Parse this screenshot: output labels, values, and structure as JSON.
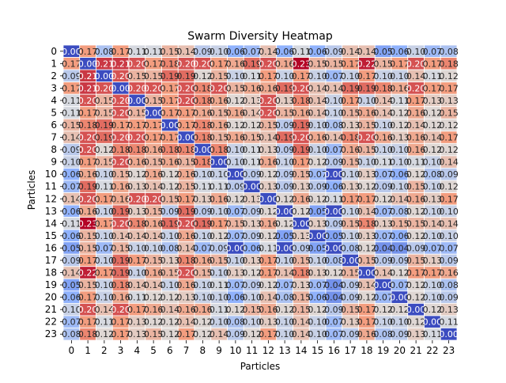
{
  "chart_data": {
    "type": "heatmap",
    "title": "Swarm Diversity Heatmap",
    "xlabel": "Particles",
    "ylabel": "Particles",
    "x_categories": [
      "0",
      "1",
      "2",
      "3",
      "4",
      "5",
      "6",
      "7",
      "8",
      "9",
      "10",
      "11",
      "12",
      "13",
      "14",
      "15",
      "16",
      "17",
      "18",
      "19",
      "20",
      "21",
      "22",
      "23"
    ],
    "y_categories": [
      "0",
      "1",
      "2",
      "3",
      "4",
      "5",
      "6",
      "7",
      "8",
      "9",
      "10",
      "11",
      "12",
      "13",
      "14",
      "15",
      "16",
      "17",
      "18",
      "19",
      "20",
      "21",
      "22",
      "23"
    ],
    "colormap": "coolwarm",
    "value_range": [
      0.0,
      0.23
    ],
    "grid": "white cell borders",
    "legend": "none",
    "values": [
      [
        0.0,
        0.17,
        0.08,
        0.17,
        0.11,
        0.11,
        0.15,
        0.14,
        0.09,
        0.1,
        0.06,
        0.07,
        0.14,
        0.06,
        0.11,
        0.06,
        0.09,
        0.14,
        0.14,
        0.05,
        0.06,
        0.1,
        0.07,
        0.08
      ],
      [
        0.17,
        0.0,
        0.21,
        0.21,
        0.2,
        0.17,
        0.18,
        0.2,
        0.2,
        0.17,
        0.16,
        0.19,
        0.2,
        0.16,
        0.23,
        0.15,
        0.15,
        0.17,
        0.22,
        0.15,
        0.17,
        0.2,
        0.17,
        0.18
      ],
      [
        0.09,
        0.21,
        0.0,
        0.2,
        0.15,
        0.15,
        0.19,
        0.19,
        0.12,
        0.15,
        0.1,
        0.11,
        0.17,
        0.1,
        0.17,
        0.1,
        0.07,
        0.1,
        0.17,
        0.1,
        0.1,
        0.14,
        0.11,
        0.12
      ],
      [
        0.17,
        0.21,
        0.2,
        0.0,
        0.2,
        0.2,
        0.17,
        0.2,
        0.18,
        0.2,
        0.15,
        0.16,
        0.16,
        0.19,
        0.2,
        0.14,
        0.14,
        0.19,
        0.19,
        0.18,
        0.16,
        0.2,
        0.17,
        0.17
      ],
      [
        0.11,
        0.2,
        0.15,
        0.2,
        0.0,
        0.15,
        0.17,
        0.2,
        0.18,
        0.16,
        0.12,
        0.13,
        0.2,
        0.13,
        0.18,
        0.14,
        0.1,
        0.17,
        0.1,
        0.14,
        0.11,
        0.17,
        0.13,
        0.13
      ],
      [
        0.11,
        0.17,
        0.15,
        0.2,
        0.15,
        0.0,
        0.17,
        0.17,
        0.16,
        0.15,
        0.16,
        0.14,
        0.2,
        0.15,
        0.16,
        0.14,
        0.1,
        0.15,
        0.16,
        0.14,
        0.12,
        0.16,
        0.12,
        0.15
      ],
      [
        0.15,
        0.18,
        0.19,
        0.17,
        0.17,
        0.17,
        0.0,
        0.17,
        0.18,
        0.16,
        0.12,
        0.12,
        0.15,
        0.09,
        0.19,
        0.1,
        0.08,
        0.13,
        0.15,
        0.1,
        0.12,
        0.14,
        0.12,
        0.12
      ],
      [
        0.14,
        0.2,
        0.19,
        0.2,
        0.2,
        0.17,
        0.17,
        0.0,
        0.18,
        0.15,
        0.16,
        0.15,
        0.14,
        0.19,
        0.2,
        0.16,
        0.14,
        0.18,
        0.2,
        0.16,
        0.13,
        0.16,
        0.14,
        0.17
      ],
      [
        0.09,
        0.2,
        0.12,
        0.18,
        0.18,
        0.16,
        0.18,
        0.18,
        0.0,
        0.18,
        0.1,
        0.11,
        0.13,
        0.09,
        0.19,
        0.1,
        0.07,
        0.16,
        0.15,
        0.1,
        0.1,
        0.16,
        0.12,
        0.12
      ],
      [
        0.1,
        0.17,
        0.15,
        0.2,
        0.16,
        0.15,
        0.16,
        0.15,
        0.18,
        0.0,
        0.1,
        0.11,
        0.16,
        0.1,
        0.17,
        0.12,
        0.09,
        0.15,
        0.1,
        0.11,
        0.1,
        0.11,
        0.1,
        0.14
      ],
      [
        0.06,
        0.16,
        0.1,
        0.15,
        0.12,
        0.16,
        0.12,
        0.16,
        0.1,
        0.1,
        0.0,
        0.09,
        0.12,
        0.09,
        0.15,
        0.07,
        0.0,
        0.1,
        0.13,
        0.07,
        0.06,
        0.12,
        0.08,
        0.09
      ],
      [
        0.07,
        0.19,
        0.11,
        0.16,
        0.13,
        0.14,
        0.12,
        0.15,
        0.11,
        0.11,
        0.09,
        0.0,
        0.13,
        0.09,
        0.13,
        0.09,
        0.06,
        0.13,
        0.12,
        0.09,
        0.1,
        0.15,
        0.1,
        0.12
      ],
      [
        0.14,
        0.2,
        0.17,
        0.16,
        0.2,
        0.2,
        0.15,
        0.17,
        0.13,
        0.16,
        0.12,
        0.13,
        0.0,
        0.12,
        0.16,
        0.12,
        0.11,
        0.17,
        0.17,
        0.12,
        0.14,
        0.16,
        0.13,
        0.17
      ],
      [
        0.06,
        0.16,
        0.1,
        0.19,
        0.13,
        0.15,
        0.09,
        0.19,
        0.09,
        0.1,
        0.07,
        0.09,
        0.12,
        0.0,
        0.12,
        0.05,
        0.0,
        0.1,
        0.14,
        0.07,
        0.08,
        0.12,
        0.1,
        0.1
      ],
      [
        0.11,
        0.23,
        0.17,
        0.2,
        0.18,
        0.16,
        0.19,
        0.2,
        0.19,
        0.17,
        0.15,
        0.13,
        0.16,
        0.12,
        0.0,
        0.13,
        0.09,
        0.15,
        0.18,
        0.13,
        0.15,
        0.15,
        0.14,
        0.14
      ],
      [
        0.06,
        0.15,
        0.1,
        0.14,
        0.14,
        0.14,
        0.1,
        0.16,
        0.1,
        0.12,
        0.07,
        0.09,
        0.12,
        0.05,
        0.13,
        0.0,
        0.05,
        0.1,
        0.13,
        0.07,
        0.06,
        0.12,
        0.1,
        0.1
      ],
      [
        0.05,
        0.15,
        0.07,
        0.15,
        0.1,
        0.1,
        0.08,
        0.14,
        0.07,
        0.09,
        0.0,
        0.06,
        0.11,
        0.0,
        0.09,
        0.05,
        0.0,
        0.08,
        0.12,
        0.04,
        0.04,
        0.09,
        0.07,
        0.07
      ],
      [
        0.09,
        0.17,
        0.1,
        0.19,
        0.17,
        0.15,
        0.13,
        0.18,
        0.16,
        0.15,
        0.1,
        0.13,
        0.17,
        0.1,
        0.15,
        0.1,
        0.08,
        0.0,
        0.15,
        0.09,
        0.09,
        0.15,
        0.13,
        0.09
      ],
      [
        0.14,
        0.22,
        0.17,
        0.19,
        0.1,
        0.16,
        0.15,
        0.2,
        0.15,
        0.1,
        0.13,
        0.12,
        0.17,
        0.14,
        0.18,
        0.13,
        0.12,
        0.15,
        0.0,
        0.14,
        0.12,
        0.17,
        0.17,
        0.16
      ],
      [
        0.05,
        0.15,
        0.1,
        0.18,
        0.14,
        0.14,
        0.1,
        0.16,
        0.1,
        0.11,
        0.07,
        0.09,
        0.12,
        0.07,
        0.13,
        0.07,
        0.04,
        0.09,
        0.14,
        0.0,
        0.07,
        0.12,
        0.1,
        0.08
      ],
      [
        0.06,
        0.17,
        0.1,
        0.16,
        0.11,
        0.12,
        0.12,
        0.13,
        0.1,
        0.1,
        0.06,
        0.1,
        0.14,
        0.08,
        0.15,
        0.06,
        0.04,
        0.09,
        0.12,
        0.07,
        0.0,
        0.12,
        0.1,
        0.09
      ],
      [
        0.1,
        0.2,
        0.14,
        0.2,
        0.17,
        0.16,
        0.14,
        0.16,
        0.16,
        0.11,
        0.12,
        0.15,
        0.16,
        0.12,
        0.15,
        0.12,
        0.09,
        0.15,
        0.17,
        0.12,
        0.12,
        0.0,
        0.12,
        0.13
      ],
      [
        0.07,
        0.17,
        0.11,
        0.17,
        0.13,
        0.12,
        0.12,
        0.14,
        0.12,
        0.1,
        0.08,
        0.1,
        0.13,
        0.1,
        0.14,
        0.1,
        0.07,
        0.13,
        0.17,
        0.1,
        0.1,
        0.12,
        0.0,
        0.11
      ],
      [
        0.08,
        0.18,
        0.12,
        0.17,
        0.13,
        0.15,
        0.12,
        0.17,
        0.12,
        0.14,
        0.09,
        0.12,
        0.17,
        0.1,
        0.14,
        0.1,
        0.07,
        0.09,
        0.16,
        0.08,
        0.09,
        0.13,
        0.11,
        0.0
      ]
    ]
  }
}
